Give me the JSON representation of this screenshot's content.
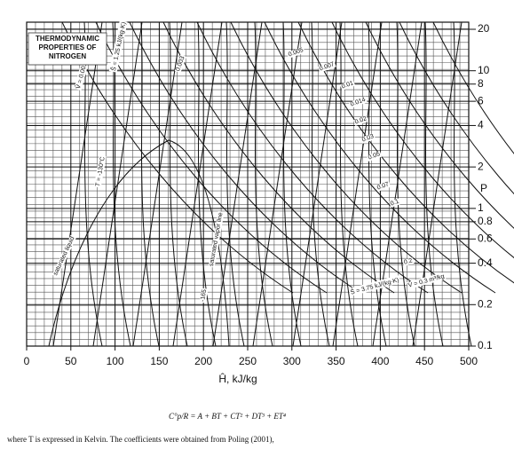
{
  "chart_data": {
    "type": "ph_diagram",
    "title": [
      "THERMODYNAMIC",
      "PROPERTIES OF",
      "NITROGEN"
    ],
    "x_label": "Ĥ, kJ/kg",
    "y_label": "P",
    "xlim": [
      0,
      500
    ],
    "xticks": [
      0,
      50,
      100,
      150,
      200,
      250,
      300,
      350,
      400,
      450,
      500
    ],
    "ylim": [
      0.1,
      20
    ],
    "log_scale_y": true,
    "yticks": [
      20,
      10,
      8,
      6,
      4,
      2,
      1,
      0.8,
      0.6,
      0.4,
      0.2,
      0.1
    ],
    "grid": true,
    "annotations": [
      "V̂ = 0.0014 m³/kg",
      "Ŝ = 1.25 kJ/(kg·K)",
      "0.003",
      "0.005",
      "0.007",
      "0.01",
      "0.014",
      "0.02",
      "0.03",
      "0.05",
      "0.07",
      "0.1",
      "0.2",
      "V̂ = 0.3 m³/kg",
      "saturated liquid",
      "saturated vapor line",
      "Ŝ = 3.75 kJ/(kg·K)",
      "T = -130°C",
      "-165"
    ],
    "equation": "C°p/R = A + BT + CT² + DT³ + ET⁴",
    "footnote": "where T is expressed in Kelvin. The coefficients were obtained from Poling (2001),"
  }
}
